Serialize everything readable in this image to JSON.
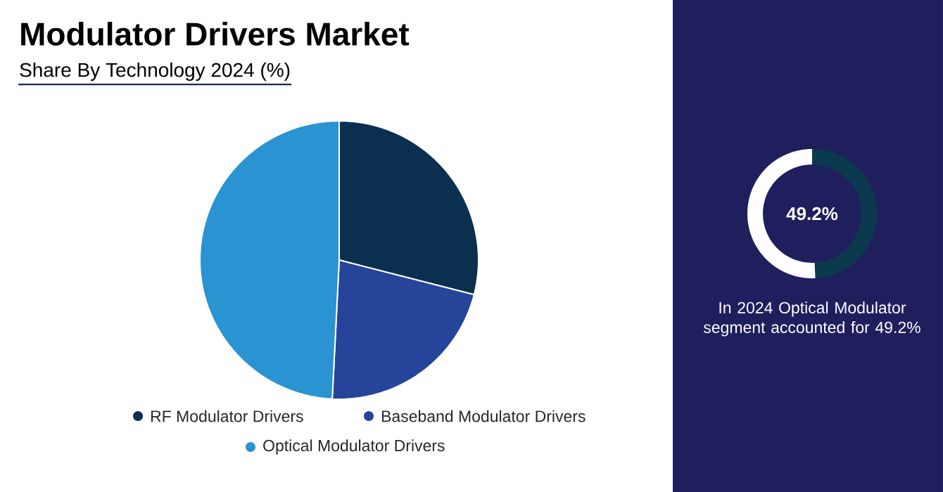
{
  "chart_data": [
    {
      "type": "pie",
      "title": "Modulator Drivers Market",
      "subtitle": "Share By Technology 2024 (%)",
      "categories": [
        "RF Modulator Drivers",
        "Baseband Modulator Drivers",
        "Optical Modulator Drivers"
      ],
      "values": [
        29.0,
        21.8,
        49.2
      ],
      "colors": [
        "#0b2f4f",
        "#25449a",
        "#2a93d1"
      ],
      "legend": "bottom"
    },
    {
      "type": "donut",
      "categories": [
        null,
        null
      ],
      "values": [
        49.2,
        50.8
      ],
      "colors": [
        "#0b3a4e",
        "#ffffff"
      ],
      "annotations": [
        "49.2%",
        "In 2024 Optical Modulator segment accounted for 49.2%"
      ]
    }
  ]
}
